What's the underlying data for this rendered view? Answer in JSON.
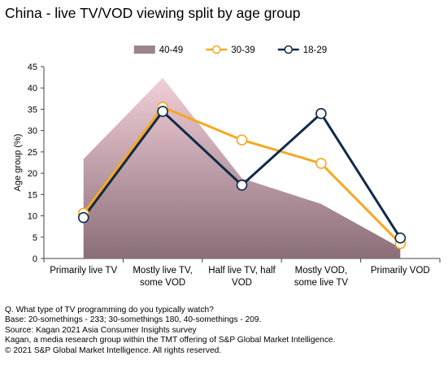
{
  "title": "China - live TV/VOD viewing split by age group",
  "notes": [
    "Q.  What type of TV programming do you typically watch?",
    "Base: 20-somethings - 233; 30-somethings 180, 40-somethings - 209.",
    "Source: Kagan 2021 Asia Consumer Insights survey",
    "Kagan, a media research group within the TMT offering of S&P Global Market Intelligence.",
    "© 2021 S&P Global Market Intelligence.  All rights reserved."
  ],
  "chart_data": {
    "type": "line",
    "title": "China - live TV/VOD viewing split by age group",
    "xlabel": "",
    "ylabel": "Age group (%)",
    "ylim": [
      0,
      45
    ],
    "yticks": [
      0,
      5,
      10,
      15,
      20,
      25,
      30,
      35,
      40,
      45
    ],
    "grid": false,
    "legend_position": "top",
    "categories": [
      [
        "Primarily live TV"
      ],
      [
        "Mostly live TV,",
        "some VOD"
      ],
      [
        "Half live TV, half",
        "VOD"
      ],
      [
        "Mostly VOD,",
        "some live TV"
      ],
      [
        "Primarily VOD"
      ]
    ],
    "series": [
      {
        "name": "40-49",
        "type": "area",
        "color_top": "#f2cfd9",
        "color_bottom": "#8a6e78",
        "values": [
          23.3,
          42.4,
          18.8,
          12.8,
          2.5
        ]
      },
      {
        "name": "30-39",
        "type": "line",
        "color": "#f7a823",
        "marker_fill": "#ffffff",
        "values": [
          10.6,
          35.5,
          27.8,
          22.3,
          3.5
        ]
      },
      {
        "name": "18-29",
        "type": "line",
        "color": "#0f2a4a",
        "marker_fill": "#ffffff",
        "values": [
          9.6,
          34.5,
          17.2,
          34.0,
          4.8
        ]
      }
    ]
  }
}
